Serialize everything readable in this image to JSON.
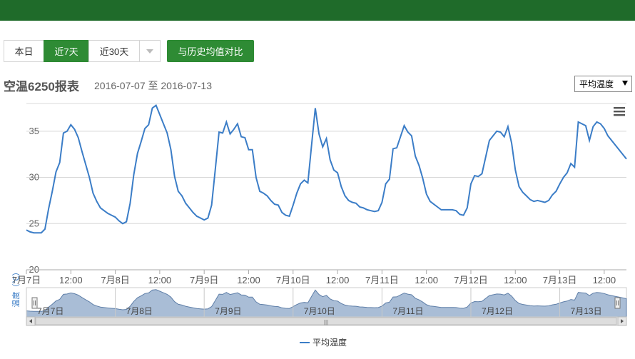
{
  "toolbar": {
    "range_tabs": [
      {
        "label": "本日",
        "active": false
      },
      {
        "label": "近7天",
        "active": true
      },
      {
        "label": "近30天",
        "active": false
      }
    ],
    "compare_label": "与历史均值对比"
  },
  "header": {
    "title": "空温6250报表",
    "date_range": "2016-07-07 至 2016-07-13",
    "metric_selected": "平均温度"
  },
  "colors": {
    "topbar": "#1f6b2a",
    "accent_green": "#2e8b34",
    "series_line": "#3b7dc7",
    "navigator_fill": "#a9bdd6"
  },
  "chart_data": {
    "type": "line",
    "ylabel": "温度（℃）",
    "ylim": [
      20,
      38
    ],
    "yticks": [
      20,
      25,
      30,
      35
    ],
    "x_tick_labels": [
      "7月7日",
      "12:00",
      "7月8日",
      "12:00",
      "7月9日",
      "12:00",
      "7月10日",
      "12:00",
      "7月11日",
      "12:00",
      "7月12日",
      "12:00",
      "7月13日",
      "12:00"
    ],
    "navigator_labels": [
      "7月7日",
      "7月8日",
      "7月9日",
      "7月10日",
      "7月11日",
      "7月12日",
      "7月13日"
    ],
    "xrange_hours": [
      0,
      162
    ],
    "legend": [
      "平均温度"
    ],
    "series": [
      {
        "name": "平均温度",
        "x": [
          0,
          1,
          2,
          3,
          4,
          5,
          6,
          7,
          8,
          9,
          10,
          11,
          12,
          13,
          14,
          15,
          16,
          17,
          18,
          19,
          20,
          21,
          22,
          23,
          24,
          25,
          26,
          27,
          28,
          29,
          30,
          31,
          32,
          33,
          34,
          35,
          36,
          37,
          38,
          39,
          40,
          41,
          42,
          43,
          44,
          45,
          46,
          47,
          48,
          49,
          50,
          51,
          52,
          53,
          54,
          55,
          56,
          57,
          58,
          59,
          60,
          61,
          62,
          63,
          64,
          65,
          66,
          67,
          68,
          69,
          70,
          71,
          72,
          73,
          74,
          75,
          76,
          77,
          78,
          79,
          80,
          81,
          82,
          83,
          84,
          85,
          86,
          87,
          88,
          89,
          90,
          91,
          92,
          93,
          94,
          95,
          96,
          97,
          98,
          99,
          100,
          101,
          102,
          103,
          104,
          105,
          106,
          107,
          108,
          109,
          110,
          111,
          112,
          113,
          114,
          115,
          116,
          117,
          118,
          119,
          120,
          121,
          122,
          123,
          124,
          125,
          126,
          127,
          128,
          129,
          130,
          131,
          132,
          133,
          134,
          135,
          136,
          137,
          138,
          139,
          140,
          141,
          142,
          143,
          144,
          145,
          146,
          147,
          148,
          149,
          150,
          151,
          152,
          153,
          154,
          155,
          156,
          157,
          158,
          159,
          160,
          161,
          162
        ],
        "values": [
          24.3,
          24.1,
          24.0,
          24.0,
          24.0,
          24.4,
          26.6,
          28.5,
          30.6,
          31.6,
          34.8,
          35.0,
          35.7,
          35.2,
          34.3,
          32.8,
          31.4,
          30.0,
          28.3,
          27.4,
          26.7,
          26.4,
          26.1,
          25.9,
          25.7,
          25.3,
          25.0,
          25.2,
          27.2,
          30.3,
          32.6,
          33.9,
          35.3,
          35.7,
          37.5,
          37.8,
          36.8,
          35.8,
          34.8,
          33.0,
          30.1,
          28.5,
          28.0,
          27.2,
          26.7,
          26.2,
          25.8,
          25.6,
          25.4,
          25.6,
          27.0,
          30.9,
          34.9,
          34.8,
          36.0,
          34.7,
          35.2,
          35.8,
          34.4,
          34.3,
          33.0,
          33.0,
          30.0,
          28.5,
          28.3,
          28.0,
          27.5,
          27.1,
          27.0,
          26.2,
          25.9,
          25.8,
          27.0,
          28.3,
          29.3,
          29.7,
          29.4,
          33.5,
          37.5,
          34.7,
          33.3,
          34.2,
          31.9,
          30.8,
          30.5,
          29.0,
          28.0,
          27.5,
          27.3,
          27.2,
          26.8,
          26.7,
          26.5,
          26.4,
          26.3,
          26.4,
          27.3,
          29.3,
          29.8,
          33.1,
          33.2,
          34.4,
          35.6,
          34.9,
          34.5,
          32.3,
          31.3,
          29.9,
          28.2,
          27.4,
          27.1,
          26.8,
          26.5,
          26.5,
          26.5,
          26.5,
          26.4,
          26.0,
          25.9,
          26.7,
          29.3,
          30.2,
          30.1,
          30.4,
          32.2,
          34.0,
          34.5,
          35.0,
          34.9,
          34.4,
          35.5,
          33.7,
          30.8,
          29.0,
          28.4,
          28.0,
          27.6,
          27.4,
          27.5,
          27.4,
          27.3,
          27.5,
          28.1,
          28.5,
          29.3,
          30.0,
          30.5,
          31.5,
          31.1,
          36.0,
          35.8,
          35.6,
          34.0,
          35.5,
          36.0,
          35.8,
          35.3,
          34.5,
          34.0,
          33.5,
          33.0,
          32.5,
          32.0
        ]
      }
    ]
  },
  "chart_menu_icon": "hamburger-menu-icon"
}
